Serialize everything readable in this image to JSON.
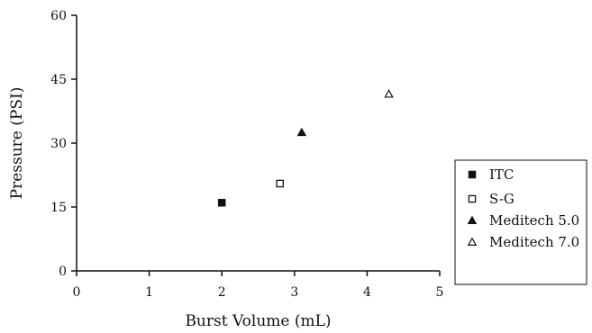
{
  "chart_data": {
    "type": "scatter",
    "title": "",
    "xlabel": "Burst Volume (mL)",
    "ylabel": "Pressure (PSI)",
    "xlim": [
      0,
      5
    ],
    "ylim": [
      0,
      60
    ],
    "xticks": [
      "0",
      "1",
      "2",
      "3",
      "4",
      "5"
    ],
    "yticks": [
      "0",
      "15",
      "30",
      "45",
      "60"
    ],
    "grid": false,
    "legend_position": "right",
    "series": [
      {
        "name": "ITC",
        "marker": "filled-square",
        "x": [
          2.0
        ],
        "y": [
          16.0
        ]
      },
      {
        "name": "S-G",
        "marker": "open-square",
        "x": [
          2.8
        ],
        "y": [
          20.5
        ]
      },
      {
        "name": "Meditech 5.0",
        "marker": "filled-triangle",
        "x": [
          3.1
        ],
        "y": [
          32.5
        ]
      },
      {
        "name": "Meditech 7.0",
        "marker": "open-triangle",
        "x": [
          4.3
        ],
        "y": [
          41.5
        ]
      }
    ]
  }
}
